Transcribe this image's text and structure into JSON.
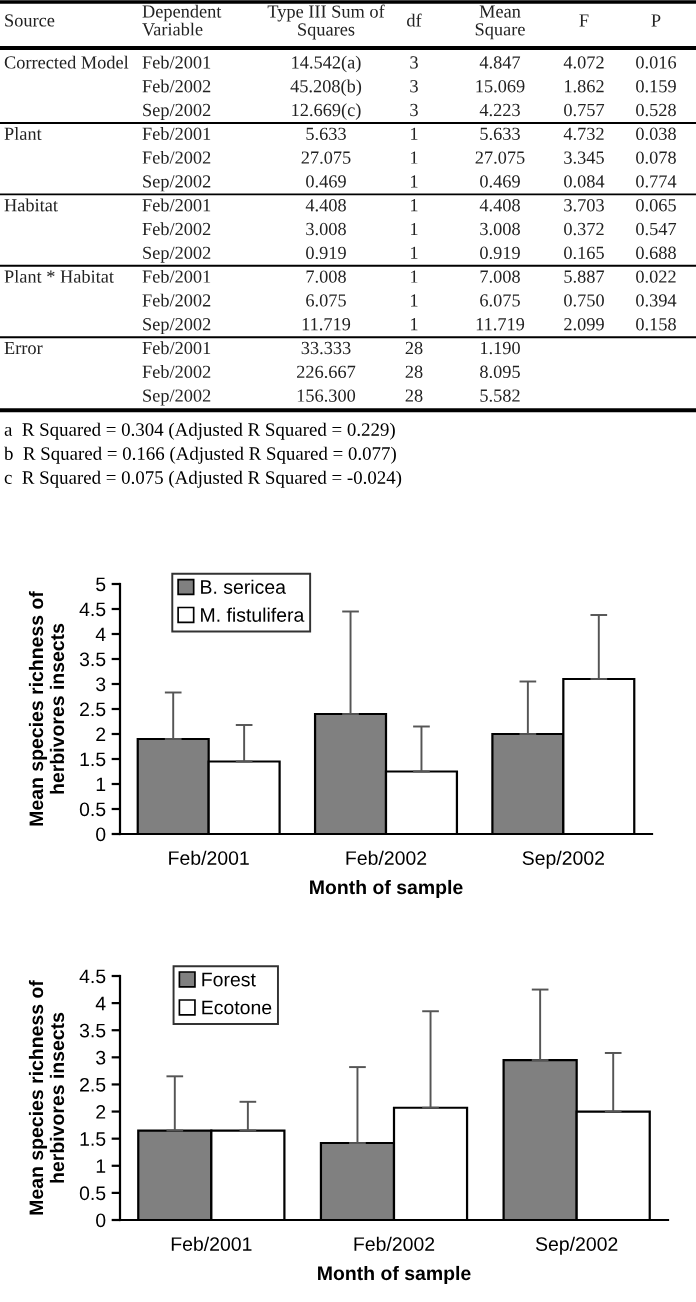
{
  "chart_data": [
    {
      "type": "other",
      "annotations": [
        "Source\tDependent\nVariable\tType III Sum of\nSquares\tdf\tMean\nSquare\tF\tP",
        "Corrected Model\tFeb/2001\t14.542(a)\t3\t4.847\t4.072\t0.016",
        "\tFeb/2002\t45.208(b)\t3\t15.069\t1.862\t0.159",
        "\tSep/2002\t12.669(c)\t3\t4.223\t0.757\t0.528",
        "Plant\tFeb/2001\t5.633\t1\t5.633\t4.732\t0.038",
        "\tFeb/2002\t27.075\t1\t27.075\t3.345\t0.078",
        "\tSep/2002\t0.469\t1\t0.469\t0.084\t0.774",
        "Habitat\tFeb/2001\t4.408\t1\t4.408\t3.703\t0.065",
        "\tFeb/2002\t3.008\t1\t3.008\t0.372\t0.547",
        "\tSep/2002\t0.919\t1\t0.919\t0.165\t0.688",
        "Plant * Habitat\tFeb/2001\t7.008\t1\t7.008\t5.887\t0.022",
        "\tFeb/2002\t6.075\t1\t6.075\t0.750\t0.394",
        "\tSep/2002\t11.719\t1\t11.719\t2.099\t0.158",
        "Error\tFeb/2001\t33.333\t28\t1.190",
        "\tFeb/2002\t226.667\t28\t8.095",
        "\tSep/2002\t156.300\t28\t5.582",
        "a  R Squared = 0.304 (Adjusted R Squared = 0.229)",
        "b  R Squared = 0.166 (Adjusted R Squared = 0.077)",
        "c  R Squared = 0.075 (Adjusted R Squared = -0.024)"
      ]
    },
    {
      "type": "bar",
      "xlabel": "Month of sample",
      "ylabel": "Mean species richness of\nherbivores insects",
      "categories": [
        "Feb/2001",
        "Feb/2002",
        "Sep/2002"
      ],
      "series": [
        {
          "name": "B. sericea",
          "color": "#808080",
          "values": [
            1.9,
            2.4,
            2.0
          ],
          "errors": [
            [
              1.9,
              2.83
            ],
            [
              2.4,
              4.45
            ],
            [
              2.0,
              3.05
            ]
          ]
        },
        {
          "name": "M. fistulifera",
          "color": "#ffffff",
          "values": [
            1.45,
            1.25,
            3.1
          ],
          "errors": [
            [
              1.45,
              2.18
            ],
            [
              1.25,
              2.15
            ],
            [
              3.1,
              4.38
            ]
          ]
        }
      ],
      "ylim": [
        0,
        5
      ],
      "yticks": [
        0,
        0.5,
        1,
        1.5,
        2,
        2.5,
        3,
        3.5,
        4,
        4.5,
        5
      ],
      "legend": "top left"
    },
    {
      "type": "bar",
      "xlabel": "Month of sample",
      "ylabel": "Mean species richness of\nherbivores insects",
      "categories": [
        "Feb/2001",
        "Feb/2002",
        "Sep/2002"
      ],
      "series": [
        {
          "name": "Forest",
          "color": "#808080",
          "values": [
            1.65,
            1.42,
            2.95
          ],
          "errors": [
            [
              1.65,
              2.65
            ],
            [
              1.42,
              2.82
            ],
            [
              2.95,
              4.25
            ]
          ]
        },
        {
          "name": "Ecotone",
          "color": "#ffffff",
          "values": [
            1.65,
            2.07,
            2.0
          ],
          "errors": [
            [
              1.65,
              2.18
            ],
            [
              2.07,
              3.85
            ],
            [
              2.0,
              3.08
            ]
          ]
        }
      ],
      "ylim": [
        0,
        4.5
      ],
      "yticks": [
        0,
        0.5,
        1,
        1.5,
        2,
        2.5,
        3,
        3.5,
        4,
        4.5
      ],
      "legend": "top left"
    }
  ]
}
